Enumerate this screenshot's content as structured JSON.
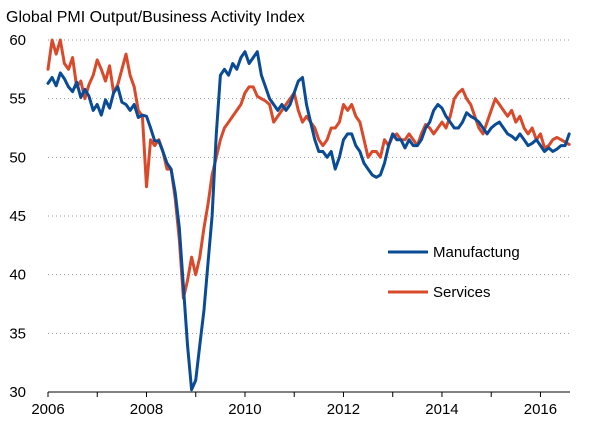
{
  "chart_data": {
    "type": "line",
    "title": "Global PMI Output/Business Activity Index",
    "xlabel": "",
    "ylabel": "",
    "xlim": [
      2006.0,
      2016.6
    ],
    "ylim": [
      30,
      60
    ],
    "x_ticks": [
      "2006",
      "2008",
      "2010",
      "2012",
      "2014",
      "2016"
    ],
    "y_ticks": [
      "30",
      "35",
      "40",
      "45",
      "50",
      "55",
      "60"
    ],
    "grid": true,
    "legend_position": "right-middle",
    "series": [
      {
        "name": "Manufactung",
        "color": "#0a4b96",
        "points": [
          [
            2006.0,
            56.3
          ],
          [
            2006.083,
            56.8
          ],
          [
            2006.167,
            56.1
          ],
          [
            2006.25,
            57.2
          ],
          [
            2006.333,
            56.7
          ],
          [
            2006.417,
            56.0
          ],
          [
            2006.5,
            55.6
          ],
          [
            2006.583,
            56.4
          ],
          [
            2006.667,
            55.1
          ],
          [
            2006.75,
            55.8
          ],
          [
            2006.833,
            55.2
          ],
          [
            2006.917,
            54.0
          ],
          [
            2007.0,
            54.5
          ],
          [
            2007.083,
            53.6
          ],
          [
            2007.167,
            54.9
          ],
          [
            2007.25,
            54.2
          ],
          [
            2007.333,
            55.5
          ],
          [
            2007.417,
            56.0
          ],
          [
            2007.5,
            54.7
          ],
          [
            2007.583,
            54.5
          ],
          [
            2007.667,
            54.0
          ],
          [
            2007.75,
            54.5
          ],
          [
            2007.833,
            53.4
          ],
          [
            2007.917,
            53.6
          ],
          [
            2008.0,
            53.5
          ],
          [
            2008.083,
            52.5
          ],
          [
            2008.167,
            51.4
          ],
          [
            2008.25,
            51.4
          ],
          [
            2008.333,
            50.5
          ],
          [
            2008.417,
            49.5
          ],
          [
            2008.5,
            49.0
          ],
          [
            2008.583,
            47.0
          ],
          [
            2008.667,
            44.0
          ],
          [
            2008.75,
            39.0
          ],
          [
            2008.833,
            34.0
          ],
          [
            2008.917,
            30.2
          ],
          [
            2009.0,
            31.0
          ],
          [
            2009.083,
            34.0
          ],
          [
            2009.167,
            37.0
          ],
          [
            2009.25,
            41.0
          ],
          [
            2009.333,
            45.0
          ],
          [
            2009.417,
            52.0
          ],
          [
            2009.5,
            57.0
          ],
          [
            2009.583,
            57.5
          ],
          [
            2009.667,
            57.0
          ],
          [
            2009.75,
            58.0
          ],
          [
            2009.833,
            57.5
          ],
          [
            2009.917,
            58.5
          ],
          [
            2010.0,
            59.0
          ],
          [
            2010.083,
            58.0
          ],
          [
            2010.167,
            58.5
          ],
          [
            2010.25,
            59.0
          ],
          [
            2010.333,
            57.0
          ],
          [
            2010.417,
            56.0
          ],
          [
            2010.5,
            55.0
          ],
          [
            2010.583,
            54.5
          ],
          [
            2010.667,
            54.0
          ],
          [
            2010.75,
            54.5
          ],
          [
            2010.833,
            54.0
          ],
          [
            2010.917,
            54.5
          ],
          [
            2011.0,
            55.5
          ],
          [
            2011.083,
            56.5
          ],
          [
            2011.167,
            56.8
          ],
          [
            2011.25,
            54.5
          ],
          [
            2011.333,
            53.0
          ],
          [
            2011.417,
            51.5
          ],
          [
            2011.5,
            50.5
          ],
          [
            2011.583,
            50.5
          ],
          [
            2011.667,
            50.0
          ],
          [
            2011.75,
            50.5
          ],
          [
            2011.833,
            49.0
          ],
          [
            2011.917,
            50.0
          ],
          [
            2012.0,
            51.5
          ],
          [
            2012.083,
            52.0
          ],
          [
            2012.167,
            52.0
          ],
          [
            2012.25,
            51.0
          ],
          [
            2012.333,
            50.5
          ],
          [
            2012.417,
            49.5
          ],
          [
            2012.5,
            49.0
          ],
          [
            2012.583,
            48.5
          ],
          [
            2012.667,
            48.3
          ],
          [
            2012.75,
            48.5
          ],
          [
            2012.833,
            49.5
          ],
          [
            2012.917,
            51.0
          ],
          [
            2013.0,
            52.0
          ],
          [
            2013.083,
            51.5
          ],
          [
            2013.167,
            51.5
          ],
          [
            2013.25,
            50.8
          ],
          [
            2013.333,
            51.5
          ],
          [
            2013.417,
            51.0
          ],
          [
            2013.5,
            51.0
          ],
          [
            2013.583,
            51.5
          ],
          [
            2013.667,
            52.5
          ],
          [
            2013.75,
            53.0
          ],
          [
            2013.833,
            54.0
          ],
          [
            2013.917,
            54.5
          ],
          [
            2014.0,
            54.2
          ],
          [
            2014.083,
            53.5
          ],
          [
            2014.167,
            53.0
          ],
          [
            2014.25,
            52.5
          ],
          [
            2014.333,
            52.5
          ],
          [
            2014.417,
            53.0
          ],
          [
            2014.5,
            53.8
          ],
          [
            2014.583,
            53.5
          ],
          [
            2014.667,
            53.3
          ],
          [
            2014.75,
            53.0
          ],
          [
            2014.833,
            52.5
          ],
          [
            2014.917,
            52.0
          ],
          [
            2015.0,
            52.5
          ],
          [
            2015.083,
            52.8
          ],
          [
            2015.167,
            53.0
          ],
          [
            2015.25,
            52.5
          ],
          [
            2015.333,
            52.0
          ],
          [
            2015.417,
            51.8
          ],
          [
            2015.5,
            51.5
          ],
          [
            2015.583,
            52.0
          ],
          [
            2015.667,
            51.5
          ],
          [
            2015.75,
            51.0
          ],
          [
            2015.833,
            51.2
          ],
          [
            2015.917,
            51.5
          ],
          [
            2016.0,
            51.0
          ],
          [
            2016.083,
            50.5
          ],
          [
            2016.167,
            50.8
          ],
          [
            2016.25,
            50.5
          ],
          [
            2016.333,
            50.7
          ],
          [
            2016.417,
            51.0
          ],
          [
            2016.5,
            51.0
          ],
          [
            2016.583,
            52.0
          ]
        ]
      },
      {
        "name": "Services",
        "color": "#d94a2b",
        "points": [
          [
            2006.0,
            57.5
          ],
          [
            2006.083,
            60.0
          ],
          [
            2006.167,
            58.8
          ],
          [
            2006.25,
            60.0
          ],
          [
            2006.333,
            58.0
          ],
          [
            2006.417,
            57.5
          ],
          [
            2006.5,
            58.5
          ],
          [
            2006.583,
            56.0
          ],
          [
            2006.667,
            56.5
          ],
          [
            2006.75,
            55.0
          ],
          [
            2006.833,
            56.2
          ],
          [
            2006.917,
            57.0
          ],
          [
            2007.0,
            58.3
          ],
          [
            2007.083,
            57.5
          ],
          [
            2007.167,
            56.5
          ],
          [
            2007.25,
            57.8
          ],
          [
            2007.333,
            55.5
          ],
          [
            2007.417,
            56.2
          ],
          [
            2007.5,
            57.5
          ],
          [
            2007.583,
            58.8
          ],
          [
            2007.667,
            57.0
          ],
          [
            2007.75,
            56.0
          ],
          [
            2007.833,
            54.0
          ],
          [
            2007.917,
            53.5
          ],
          [
            2008.0,
            47.5
          ],
          [
            2008.083,
            51.5
          ],
          [
            2008.167,
            51.0
          ],
          [
            2008.25,
            51.5
          ],
          [
            2008.333,
            50.5
          ],
          [
            2008.417,
            49.0
          ],
          [
            2008.5,
            49.0
          ],
          [
            2008.583,
            46.5
          ],
          [
            2008.667,
            43.0
          ],
          [
            2008.75,
            38.0
          ],
          [
            2008.833,
            39.5
          ],
          [
            2008.917,
            41.5
          ],
          [
            2009.0,
            40.0
          ],
          [
            2009.083,
            41.5
          ],
          [
            2009.167,
            44.0
          ],
          [
            2009.25,
            46.0
          ],
          [
            2009.333,
            48.5
          ],
          [
            2009.417,
            50.0
          ],
          [
            2009.5,
            51.5
          ],
          [
            2009.583,
            52.5
          ],
          [
            2009.667,
            53.0
          ],
          [
            2009.75,
            53.5
          ],
          [
            2009.833,
            54.0
          ],
          [
            2009.917,
            54.5
          ],
          [
            2010.0,
            55.5
          ],
          [
            2010.083,
            56.0
          ],
          [
            2010.167,
            56.0
          ],
          [
            2010.25,
            55.2
          ],
          [
            2010.333,
            55.0
          ],
          [
            2010.417,
            54.8
          ],
          [
            2010.5,
            54.5
          ],
          [
            2010.583,
            53.0
          ],
          [
            2010.667,
            53.5
          ],
          [
            2010.75,
            54.0
          ],
          [
            2010.833,
            54.5
          ],
          [
            2010.917,
            55.0
          ],
          [
            2011.0,
            55.5
          ],
          [
            2011.083,
            54.0
          ],
          [
            2011.167,
            53.0
          ],
          [
            2011.25,
            53.5
          ],
          [
            2011.333,
            53.0
          ],
          [
            2011.417,
            52.5
          ],
          [
            2011.5,
            51.5
          ],
          [
            2011.583,
            51.0
          ],
          [
            2011.667,
            51.5
          ],
          [
            2011.75,
            52.5
          ],
          [
            2011.833,
            52.5
          ],
          [
            2011.917,
            53.0
          ],
          [
            2012.0,
            54.5
          ],
          [
            2012.083,
            54.0
          ],
          [
            2012.167,
            54.5
          ],
          [
            2012.25,
            53.5
          ],
          [
            2012.333,
            53.0
          ],
          [
            2012.417,
            51.5
          ],
          [
            2012.5,
            50.0
          ],
          [
            2012.583,
            50.5
          ],
          [
            2012.667,
            50.5
          ],
          [
            2012.75,
            50.0
          ],
          [
            2012.833,
            51.5
          ],
          [
            2012.917,
            51.0
          ],
          [
            2013.0,
            51.8
          ],
          [
            2013.083,
            52.0
          ],
          [
            2013.167,
            51.5
          ],
          [
            2013.25,
            51.5
          ],
          [
            2013.333,
            52.0
          ],
          [
            2013.417,
            51.5
          ],
          [
            2013.5,
            51.0
          ],
          [
            2013.583,
            52.0
          ],
          [
            2013.667,
            52.8
          ],
          [
            2013.75,
            52.5
          ],
          [
            2013.833,
            52.0
          ],
          [
            2013.917,
            52.5
          ],
          [
            2014.0,
            53.0
          ],
          [
            2014.083,
            52.5
          ],
          [
            2014.167,
            53.5
          ],
          [
            2014.25,
            55.0
          ],
          [
            2014.333,
            55.5
          ],
          [
            2014.417,
            55.8
          ],
          [
            2014.5,
            55.0
          ],
          [
            2014.583,
            54.5
          ],
          [
            2014.667,
            53.5
          ],
          [
            2014.75,
            52.5
          ],
          [
            2014.833,
            52.0
          ],
          [
            2014.917,
            53.0
          ],
          [
            2015.0,
            54.0
          ],
          [
            2015.083,
            55.0
          ],
          [
            2015.167,
            54.5
          ],
          [
            2015.25,
            54.0
          ],
          [
            2015.333,
            53.5
          ],
          [
            2015.417,
            54.0
          ],
          [
            2015.5,
            53.0
          ],
          [
            2015.583,
            53.5
          ],
          [
            2015.667,
            52.5
          ],
          [
            2015.75,
            52.0
          ],
          [
            2015.833,
            52.5
          ],
          [
            2015.917,
            51.5
          ],
          [
            2016.0,
            52.0
          ],
          [
            2016.083,
            50.8
          ],
          [
            2016.167,
            51.0
          ],
          [
            2016.25,
            51.5
          ],
          [
            2016.333,
            51.7
          ],
          [
            2016.417,
            51.5
          ],
          [
            2016.5,
            51.3
          ],
          [
            2016.583,
            51.1
          ]
        ]
      }
    ]
  }
}
